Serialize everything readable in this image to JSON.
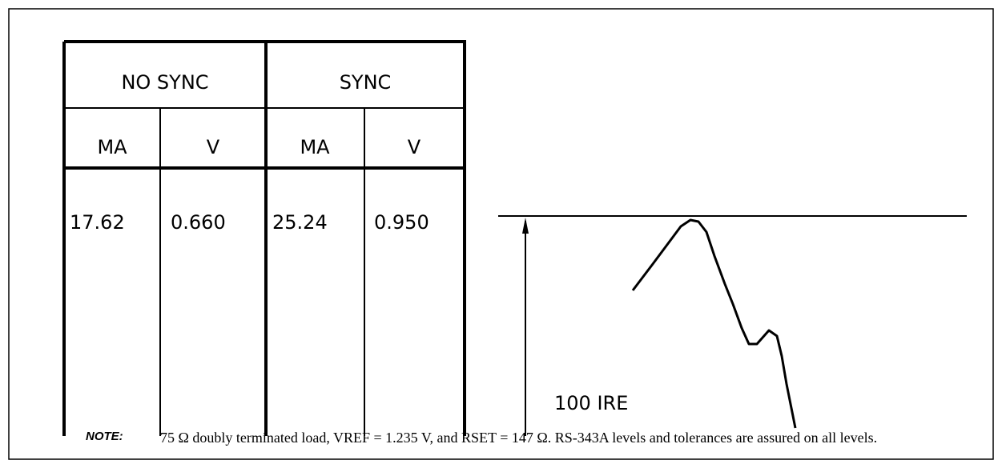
{
  "table": {
    "headers": [
      "NO SYNC",
      "SYNC"
    ],
    "subheaders": [
      "MA",
      "V",
      "MA",
      "V"
    ],
    "rows": [
      [
        "17.62",
        "0.660",
        "25.24",
        "0.950"
      ]
    ]
  },
  "diagram": {
    "label": "100 IRE"
  },
  "note": {
    "label": "NOTE:",
    "text": "75 Ω doubly terminated load, VREF = 1.235 V, and RSET = 147 Ω. RS-343A levels and tolerances are assured on all levels."
  }
}
